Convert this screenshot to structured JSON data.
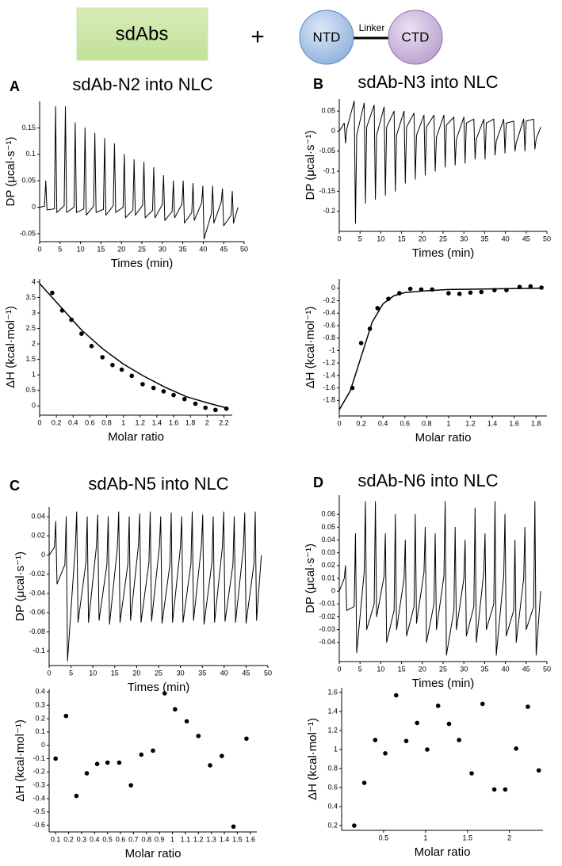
{
  "header": {
    "left_box": "sdAbs",
    "operator": "+",
    "domain_1": "NTD",
    "linker": "Linker",
    "domain_2": "CTD"
  },
  "chart_data": [
    {
      "type": "line",
      "panel": "A",
      "title": "sdAb-N2 into NLC",
      "x_label": "Times (min)",
      "y_label": "DP (μcal·s⁻¹)",
      "color": "#000000",
      "xlim": [
        0,
        50
      ],
      "xticks": [
        0,
        5,
        10,
        15,
        20,
        25,
        30,
        35,
        40,
        45,
        50
      ],
      "ylim": [
        -0.065,
        0.2
      ],
      "yticks": [
        -0.05,
        0,
        0.05,
        0.1,
        0.15
      ],
      "x": [
        0,
        1.2,
        1.5,
        1.8,
        3.6,
        3.9,
        4.2,
        6,
        6.3,
        6.6,
        8.4,
        8.7,
        9,
        10.8,
        11.1,
        11.4,
        13.2,
        13.5,
        13.8,
        15.6,
        15.9,
        16.2,
        18,
        18.3,
        18.6,
        20.4,
        20.7,
        21,
        22.8,
        23.1,
        23.4,
        25.2,
        25.5,
        25.8,
        27.6,
        27.9,
        28.2,
        30,
        30.3,
        30.6,
        32.4,
        32.7,
        33,
        34.8,
        35.1,
        35.4,
        37.2,
        37.5,
        37.8,
        39.6,
        39.9,
        40.2,
        42,
        42.3,
        42.6,
        44.4,
        44.7,
        45,
        46.8,
        47.1,
        47.4,
        48.5
      ],
      "values": [
        0,
        0.002,
        0.05,
        -0.005,
        -0.003,
        0.19,
        -0.01,
        0.003,
        0.19,
        -0.01,
        0,
        0.16,
        -0.01,
        -0.003,
        0.15,
        -0.015,
        0.002,
        0.14,
        -0.01,
        -0.004,
        0.13,
        -0.015,
        0.003,
        0.12,
        -0.01,
        0,
        0.1,
        -0.02,
        -0.005,
        0.09,
        -0.015,
        0.004,
        0.085,
        -0.02,
        -0.006,
        0.075,
        -0.02,
        0.005,
        0.06,
        -0.025,
        -0.008,
        0.05,
        -0.02,
        0.006,
        0.05,
        -0.03,
        -0.01,
        0.045,
        -0.025,
        0.008,
        0.04,
        -0.06,
        -0.012,
        0.04,
        -0.03,
        0.01,
        0.035,
        -0.035,
        -0.015,
        0.03,
        -0.03,
        0
      ]
    },
    {
      "type": "scatter",
      "x_label": "Molar  ratio",
      "y_label": "ΔH (kcal·mol⁻¹)",
      "xlim": [
        0,
        2.3
      ],
      "xticks": [
        0,
        0.2,
        0.4,
        0.6,
        0.8,
        1,
        1.2,
        1.4,
        1.6,
        1.8,
        2,
        2.2
      ],
      "ylim": [
        -0.3,
        4.1
      ],
      "yticks": [
        0,
        0.5,
        1,
        1.5,
        2,
        2.5,
        3,
        3.5,
        4
      ],
      "series": [
        {
          "type": "scatter",
          "color": "#000000",
          "x": [
            0.15,
            0.27,
            0.38,
            0.5,
            0.62,
            0.75,
            0.87,
            0.98,
            1.1,
            1.23,
            1.36,
            1.48,
            1.6,
            1.73,
            1.86,
            1.98,
            2.1,
            2.23
          ],
          "values": [
            3.65,
            3.08,
            2.78,
            2.33,
            1.93,
            1.57,
            1.32,
            1.17,
            0.97,
            0.7,
            0.58,
            0.47,
            0.35,
            0.22,
            0.07,
            -0.06,
            -0.13,
            -0.09
          ]
        },
        {
          "type": "line",
          "color": "#000000",
          "x": [
            0,
            0.25,
            0.5,
            0.75,
            1,
            1.25,
            1.5,
            1.75,
            2,
            2.25
          ],
          "values": [
            3.95,
            3.2,
            2.45,
            1.85,
            1.35,
            0.95,
            0.6,
            0.3,
            0.1,
            -0.08
          ]
        }
      ]
    },
    {
      "type": "line",
      "panel": "B",
      "title": "sdAb-N3 into NLC",
      "x_label": "Times (min)",
      "y_label": "DP (μcal·s⁻¹)",
      "color": "#000000",
      "xlim": [
        0,
        50
      ],
      "xticks": [
        0,
        5,
        10,
        15,
        20,
        25,
        30,
        35,
        40,
        45,
        50
      ],
      "ylim": [
        -0.25,
        0.08
      ],
      "yticks": [
        -0.2,
        -0.15,
        -0.1,
        -0.05,
        0,
        0.05
      ],
      "x": [
        0,
        1.2,
        1.5,
        1.8,
        3.6,
        3.9,
        4.2,
        6,
        6.3,
        6.6,
        8.4,
        8.7,
        9,
        10.8,
        11.1,
        11.4,
        13.2,
        13.5,
        13.8,
        15.6,
        15.9,
        16.2,
        18,
        18.3,
        18.6,
        20.4,
        20.7,
        21,
        22.8,
        23.1,
        23.4,
        25.2,
        25.5,
        25.8,
        27.6,
        27.9,
        28.2,
        30,
        30.3,
        30.6,
        32.4,
        32.7,
        33,
        34.8,
        35.1,
        35.4,
        37.2,
        37.5,
        37.8,
        39.6,
        39.9,
        40.2,
        42,
        42.3,
        42.6,
        44.4,
        44.7,
        45,
        46.8,
        47.1,
        47.4,
        48.5
      ],
      "values": [
        0,
        0.02,
        -0.03,
        0.005,
        0.075,
        -0.23,
        -0.01,
        0.07,
        -0.18,
        0.01,
        0.065,
        -0.17,
        -0.01,
        0.06,
        -0.16,
        0.01,
        0.05,
        -0.15,
        -0.01,
        0.05,
        -0.13,
        0.01,
        0.045,
        -0.12,
        -0.01,
        0.04,
        -0.11,
        0.01,
        0.04,
        -0.1,
        -0.015,
        0.04,
        -0.09,
        0.015,
        0.035,
        -0.085,
        -0.02,
        0.035,
        -0.08,
        0.02,
        0.03,
        -0.07,
        -0.02,
        0.03,
        -0.07,
        0.02,
        0.03,
        -0.06,
        -0.025,
        0.03,
        -0.055,
        0.02,
        0.025,
        -0.05,
        -0.03,
        0.03,
        -0.05,
        0.025,
        0.03,
        -0.045,
        -0.02,
        0.01
      ]
    },
    {
      "type": "scatter",
      "x_label": "Molar  ratio",
      "y_label": "ΔH (kcal·mol⁻¹)",
      "xlim": [
        0,
        1.9
      ],
      "xticks": [
        0,
        0.2,
        0.4,
        0.6,
        0.8,
        1,
        1.2,
        1.4,
        1.6,
        1.8
      ],
      "ylim": [
        -2.05,
        0.15
      ],
      "yticks": [
        -1.8,
        -1.6,
        -1.4,
        -1.2,
        -1,
        -0.8,
        -0.6,
        -0.4,
        -0.2,
        0
      ],
      "series": [
        {
          "type": "scatter",
          "color": "#000000",
          "x": [
            0.12,
            0.2,
            0.28,
            0.35,
            0.45,
            0.55,
            0.65,
            0.75,
            0.85,
            1,
            1.1,
            1.2,
            1.3,
            1.42,
            1.53,
            1.65,
            1.75,
            1.85
          ],
          "values": [
            -1.6,
            -0.88,
            -0.65,
            -0.32,
            -0.17,
            -0.08,
            -0.01,
            -0.02,
            -0.02,
            -0.08,
            -0.09,
            -0.07,
            -0.06,
            -0.03,
            -0.03,
            0.02,
            0.03,
            0.01
          ]
        },
        {
          "type": "line",
          "color": "#000000",
          "x": [
            0,
            0.1,
            0.2,
            0.3,
            0.4,
            0.5,
            0.6,
            0.8,
            1,
            1.4,
            1.85
          ],
          "values": [
            -1.95,
            -1.65,
            -1.1,
            -0.55,
            -0.25,
            -0.12,
            -0.07,
            -0.04,
            -0.02,
            -0.01,
            0
          ]
        }
      ]
    },
    {
      "type": "line",
      "panel": "C",
      "title": "sdAb-N5 into NLC",
      "x_label": "Times (min)",
      "y_label": "DP (μcal·s⁻¹)",
      "color": "#000000",
      "xlim": [
        0,
        50
      ],
      "xticks": [
        0,
        5,
        10,
        15,
        20,
        25,
        30,
        35,
        40,
        45,
        50
      ],
      "ylim": [
        -0.115,
        0.05
      ],
      "yticks": [
        -0.1,
        -0.08,
        -0.06,
        -0.04,
        -0.02,
        0,
        0.02,
        0.04
      ],
      "x": [
        0,
        1.2,
        1.5,
        1.8,
        3.6,
        3.9,
        4.2,
        6,
        6.3,
        6.6,
        8.4,
        8.7,
        9,
        10.8,
        11.1,
        11.4,
        13.2,
        13.5,
        13.8,
        15.6,
        15.9,
        16.2,
        18,
        18.3,
        18.6,
        20.4,
        20.7,
        21,
        22.8,
        23.1,
        23.4,
        25.2,
        25.5,
        25.8,
        27.6,
        27.9,
        28.2,
        30,
        30.3,
        30.6,
        32.4,
        32.7,
        33,
        34.8,
        35.1,
        35.4,
        37.2,
        37.5,
        37.8,
        39.6,
        39.9,
        40.2,
        42,
        42.3,
        42.6,
        44.4,
        44.7,
        45,
        46.8,
        47.1,
        47.4,
        48.5
      ],
      "values": [
        0,
        0.008,
        0.035,
        -0.03,
        -0.01,
        0.04,
        -0.11,
        0.01,
        0.045,
        -0.07,
        -0.008,
        0.04,
        -0.07,
        0.009,
        0.042,
        -0.068,
        -0.01,
        0.04,
        -0.072,
        0.008,
        0.045,
        -0.07,
        -0.009,
        0.04,
        -0.068,
        0.01,
        0.043,
        -0.07,
        -0.008,
        0.045,
        -0.069,
        0.009,
        0.04,
        -0.071,
        -0.01,
        0.044,
        -0.07,
        0.008,
        0.04,
        -0.07,
        -0.009,
        0.045,
        -0.068,
        0.01,
        0.042,
        -0.072,
        -0.008,
        0.04,
        -0.07,
        0.009,
        0.045,
        -0.069,
        -0.01,
        0.04,
        -0.07,
        0.008,
        0.044,
        -0.071,
        -0.009,
        0.045,
        -0.068,
        0
      ]
    },
    {
      "type": "scatter",
      "x_label": "Molar  ratio",
      "y_label": "ΔH (kcal·mol⁻¹)",
      "xlim": [
        0.05,
        1.65
      ],
      "xticks": [
        0.1,
        0.2,
        0.3,
        0.4,
        0.5,
        0.6,
        0.7,
        0.8,
        0.9,
        1,
        1.1,
        1.2,
        1.3,
        1.4,
        1.5,
        1.6
      ],
      "ylim": [
        -0.65,
        0.42
      ],
      "yticks": [
        -0.6,
        -0.5,
        -0.4,
        -0.3,
        -0.2,
        -0.1,
        0,
        0.1,
        0.2,
        0.3,
        0.4
      ],
      "series": [
        {
          "type": "scatter",
          "color": "#000000",
          "x": [
            0.1,
            0.18,
            0.26,
            0.34,
            0.42,
            0.5,
            0.59,
            0.68,
            0.76,
            0.85,
            0.94,
            1.02,
            1.11,
            1.2,
            1.29,
            1.38,
            1.47,
            1.57
          ],
          "values": [
            -0.1,
            0.22,
            -0.38,
            -0.21,
            -0.14,
            -0.13,
            -0.13,
            -0.3,
            -0.07,
            -0.04,
            0.39,
            0.27,
            0.18,
            0.07,
            -0.15,
            -0.08,
            -0.61,
            0.05
          ]
        }
      ]
    },
    {
      "type": "line",
      "panel": "D",
      "title": "sdAb-N6 into NLC",
      "x_label": "Times (min)",
      "y_label": "DP (μcal·s⁻¹)",
      "color": "#000000",
      "xlim": [
        0,
        50
      ],
      "xticks": [
        0,
        5,
        10,
        15,
        20,
        25,
        30,
        35,
        40,
        45,
        50
      ],
      "ylim": [
        -0.055,
        0.075
      ],
      "yticks": [
        -0.04,
        -0.03,
        -0.02,
        -0.01,
        0,
        0.01,
        0.02,
        0.03,
        0.04,
        0.05,
        0.06
      ],
      "x": [
        0,
        1.2,
        1.5,
        1.8,
        3.6,
        3.9,
        4.2,
        6,
        6.3,
        6.6,
        8.4,
        8.7,
        9,
        10.8,
        11.1,
        11.4,
        13.2,
        13.5,
        13.8,
        15.6,
        15.9,
        16.2,
        18,
        18.3,
        18.6,
        20.4,
        20.7,
        21,
        22.8,
        23.1,
        23.4,
        25.2,
        25.5,
        25.8,
        27.6,
        27.9,
        28.2,
        30,
        30.3,
        30.6,
        32.4,
        32.7,
        33,
        34.8,
        35.1,
        35.4,
        37.2,
        37.5,
        37.8,
        39.6,
        39.9,
        40.2,
        42,
        42.3,
        42.6,
        44.4,
        44.7,
        45,
        46.8,
        47.1,
        47.4,
        48.5
      ],
      "values": [
        0,
        0.01,
        0.02,
        -0.015,
        -0.012,
        0.045,
        -0.048,
        0.015,
        0.07,
        -0.03,
        -0.01,
        0.07,
        -0.02,
        0.012,
        0.045,
        -0.04,
        -0.015,
        0.06,
        -0.03,
        0.01,
        0.04,
        -0.035,
        -0.012,
        0.06,
        -0.025,
        0.015,
        0.05,
        -0.04,
        -0.01,
        0.045,
        -0.03,
        0.012,
        0.07,
        -0.05,
        -0.015,
        0.05,
        -0.03,
        0.01,
        0.04,
        -0.035,
        -0.012,
        0.065,
        -0.04,
        0.015,
        0.045,
        -0.03,
        -0.01,
        0.07,
        -0.05,
        0.012,
        0.06,
        -0.035,
        -0.015,
        0.04,
        -0.04,
        0.01,
        0.05,
        -0.03,
        -0.012,
        0.07,
        -0.05,
        0
      ]
    },
    {
      "type": "scatter",
      "x_label": "Molar  ratio",
      "y_label": "ΔH (kcal·mol⁻¹)",
      "xlim": [
        0,
        2.4
      ],
      "xticks": [
        0.5,
        1,
        1.5,
        2
      ],
      "ylim": [
        0.15,
        1.65
      ],
      "yticks": [
        0.2,
        0.4,
        0.6,
        0.8,
        1,
        1.2,
        1.4,
        1.6
      ],
      "series": [
        {
          "type": "scatter",
          "color": "#000000",
          "x": [
            0.15,
            0.27,
            0.4,
            0.52,
            0.65,
            0.77,
            0.9,
            1.02,
            1.15,
            1.28,
            1.4,
            1.55,
            1.68,
            1.82,
            1.95,
            2.08,
            2.22,
            2.35
          ],
          "values": [
            0.2,
            0.65,
            1.1,
            0.96,
            1.57,
            1.09,
            1.28,
            1,
            1.46,
            1.27,
            1.1,
            0.75,
            1.48,
            0.58,
            0.58,
            1.01,
            1.45,
            0.78
          ]
        }
      ]
    }
  ]
}
